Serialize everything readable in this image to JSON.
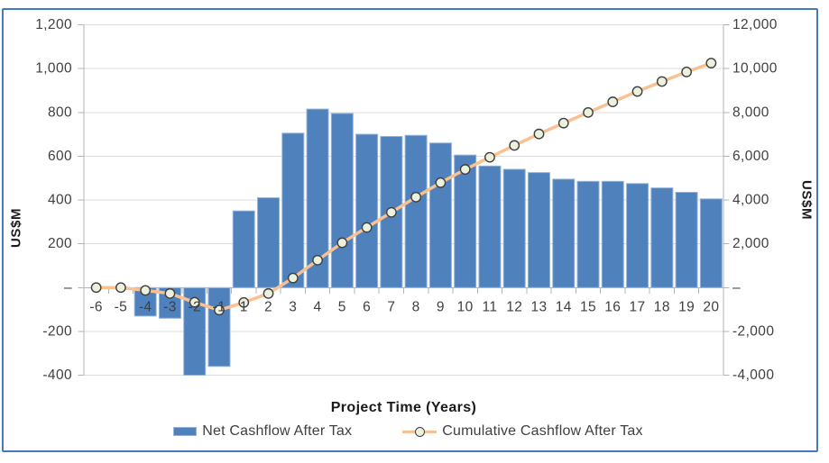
{
  "chart_data": {
    "type": "combo-bar-line",
    "categories": [
      "-6",
      "-5",
      "-4",
      "-3",
      "-2",
      "-1",
      "1",
      "2",
      "3",
      "4",
      "5",
      "6",
      "7",
      "8",
      "9",
      "10",
      "11",
      "12",
      "13",
      "14",
      "15",
      "16",
      "17",
      "18",
      "19",
      "20"
    ],
    "series": [
      {
        "name": "Net Cashflow After Tax",
        "type": "bar",
        "axis": "left",
        "values": [
          0,
          0,
          -130,
          -140,
          -400,
          -360,
          350,
          410,
          705,
          815,
          795,
          700,
          690,
          695,
          660,
          605,
          555,
          540,
          525,
          495,
          485,
          485,
          475,
          455,
          435,
          405
        ]
      },
      {
        "name": "Cumulative Cashflow After Tax",
        "type": "line",
        "axis": "right",
        "values": [
          0,
          0,
          -130,
          -270,
          -670,
          -1030,
          -680,
          -270,
          435,
          1250,
          2045,
          2745,
          3435,
          4130,
          4790,
          5395,
          5950,
          6490,
          7015,
          7510,
          7995,
          8480,
          8955,
          9410,
          9845,
          10250
        ]
      }
    ],
    "x_axis": {
      "title": "Project Time (Years)"
    },
    "left_axis": {
      "title": "US$M",
      "min": -400,
      "max": 1200,
      "step": 200,
      "tick_labels": [
        "1,200",
        "1,000",
        "800",
        "600",
        "400",
        "200",
        "–",
        "-200",
        "-400"
      ]
    },
    "right_axis": {
      "title": "US$M",
      "min": -4000,
      "max": 12000,
      "step": 2000,
      "tick_labels": [
        "12,000",
        "10,000",
        "8,000",
        "6,000",
        "4,000",
        "2,000",
        "–",
        "-2,000",
        "-4,000"
      ]
    },
    "legend": {
      "position": "bottom"
    },
    "grid": true,
    "colors": {
      "bar_fill": "#4F81BD",
      "bar_border": "#95B3D7",
      "line": "#FAC090",
      "marker_fill": "#EBF1DD",
      "marker_border": "#3F3F3F",
      "gridline": "#DCDCDC",
      "axis_line": "#B3B3B3",
      "tick_text": "#3F3F3F",
      "frame_border": "#4678C0"
    }
  }
}
